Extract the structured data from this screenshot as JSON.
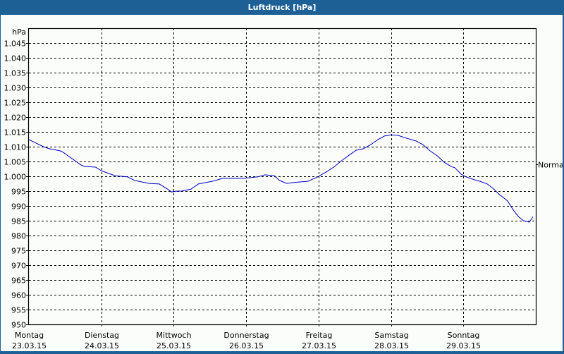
{
  "window": {
    "title": "Luftdruck [hPa]"
  },
  "colors": {
    "titlebar": "#1d6096",
    "series": "#0000c0",
    "background": "#fbfdfb",
    "grid": "#000000"
  },
  "chart_data": {
    "type": "line",
    "title": "Luftdruck [hPa]",
    "xlabel": "",
    "ylabel": "hPa",
    "ylim": [
      950,
      1045
    ],
    "yticks": [
      950,
      955,
      960,
      965,
      970,
      975,
      980,
      985,
      990,
      995,
      1000,
      1005,
      1010,
      1015,
      1020,
      1025,
      1030,
      1035,
      1040,
      1045
    ],
    "ytick_labels": [
      "950",
      "955",
      "960",
      "965",
      "970",
      "975",
      "980",
      "985",
      "990",
      "995",
      "1.000",
      "1.005",
      "1.010",
      "1.015",
      "1.020",
      "1.025",
      "1.030",
      "1.035",
      "1.040",
      "1.045"
    ],
    "categories": [
      {
        "day": "Montag",
        "date": "23.03.15"
      },
      {
        "day": "Dienstag",
        "date": "24.03.15"
      },
      {
        "day": "Mittwoch",
        "date": "25.03.15"
      },
      {
        "day": "Donnerstag",
        "date": "26.03.15"
      },
      {
        "day": "Freitag",
        "date": "27.03.15"
      },
      {
        "day": "Samstag",
        "date": "28.03.15"
      },
      {
        "day": "Sonntag",
        "date": "29.03.15"
      }
    ],
    "reference_line": {
      "label": "Normal",
      "value": 1004
    },
    "grid": true,
    "legend": "none",
    "series": [
      {
        "name": "Luftdruck",
        "x_days": [
          0.0,
          0.2,
          0.28,
          0.43,
          0.46,
          0.72,
          0.77,
          0.92,
          1.0,
          1.19,
          1.36,
          1.46,
          1.56,
          1.66,
          1.8,
          1.9,
          1.97,
          2.04,
          2.11,
          2.24,
          2.34,
          2.53,
          2.68,
          2.83,
          2.97,
          3.16,
          3.26,
          3.39,
          3.46,
          3.56,
          3.66,
          3.85,
          3.99,
          4.12,
          4.21,
          4.33,
          4.42,
          4.52,
          4.62,
          4.72,
          4.82,
          4.91,
          5.0,
          5.1,
          5.21,
          5.35,
          5.44,
          5.54,
          5.64,
          5.73,
          5.83,
          5.88,
          5.97,
          6.02,
          6.13,
          6.23,
          6.33,
          6.42,
          6.49,
          6.61,
          6.69,
          6.76,
          6.83,
          6.91,
          6.96
        ],
        "values": [
          1012.4,
          1010.0,
          1009.3,
          1008.6,
          1008.3,
          1003.8,
          1003.3,
          1003.1,
          1001.9,
          1000.2,
          999.8,
          998.6,
          998.1,
          997.6,
          997.4,
          995.9,
          994.7,
          995.0,
          995.0,
          995.7,
          997.4,
          998.3,
          999.3,
          999.3,
          999.3,
          999.8,
          1000.5,
          1000.2,
          998.6,
          997.6,
          997.9,
          998.3,
          999.8,
          1001.7,
          1003.1,
          1005.5,
          1007.1,
          1008.8,
          1009.3,
          1010.7,
          1012.4,
          1013.6,
          1014.0,
          1013.8,
          1012.9,
          1011.9,
          1010.7,
          1008.6,
          1006.9,
          1004.8,
          1003.3,
          1002.9,
          1000.7,
          1000.0,
          999.0,
          998.3,
          997.4,
          995.7,
          994.0,
          991.7,
          988.6,
          986.4,
          985.0,
          984.5,
          986.4
        ]
      }
    ]
  }
}
